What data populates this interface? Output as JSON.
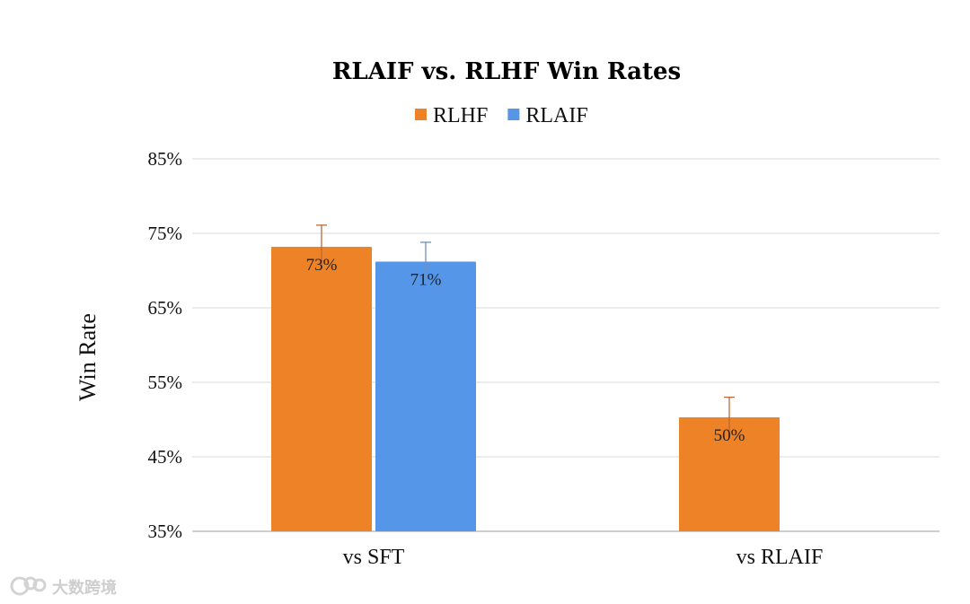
{
  "chart_data": {
    "type": "bar",
    "title": "RLAIF vs. RLHF Win Rates",
    "xlabel": "",
    "ylabel": "Win Rate",
    "categories": [
      "vs SFT",
      "vs RLAIF"
    ],
    "series": [
      {
        "name": "RLHF",
        "color": "#EE8226",
        "errorColor": "#B86A3A",
        "values": [
          73.2,
          50.3
        ],
        "errorUpper": [
          76.1,
          53.0
        ],
        "labels": [
          "73%",
          "50%"
        ]
      },
      {
        "name": "RLAIF",
        "color": "#5596E8",
        "errorColor": "#6F8FBF",
        "values": [
          71.2,
          null
        ],
        "errorUpper": [
          73.8,
          null
        ],
        "labels": [
          "71%",
          ""
        ]
      }
    ],
    "ylim": [
      35,
      85
    ],
    "yticks": [
      35,
      45,
      55,
      65,
      75,
      85
    ],
    "ytick_labels": [
      "35%",
      "45%",
      "55%",
      "65%",
      "75%",
      "85%"
    ],
    "grid": true,
    "legend_position": "top"
  },
  "watermark": {
    "text": "大数跨境",
    "icon": "logo-icon"
  }
}
